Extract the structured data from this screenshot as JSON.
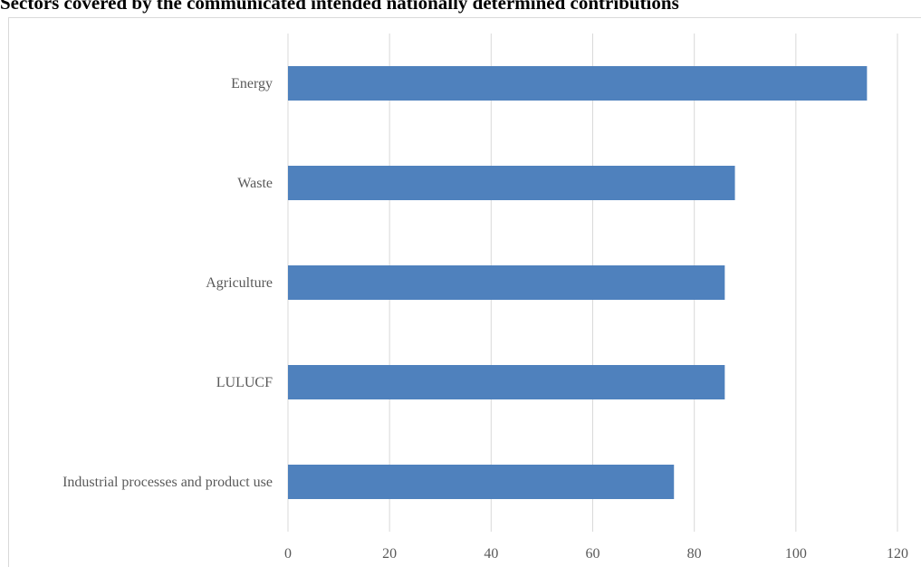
{
  "chart_data": {
    "type": "bar",
    "orientation": "horizontal",
    "title": "Sectors covered by the communicated intended nationally determined contributions",
    "categories": [
      "Energy",
      "Waste",
      "Agriculture",
      "LULUCF",
      "Industrial processes and product use"
    ],
    "values": [
      114,
      88,
      86,
      86,
      76
    ],
    "xlabel": "",
    "ylabel": "",
    "xlim": [
      0,
      120
    ],
    "xticks": [
      "0",
      "20",
      "40",
      "60",
      "80",
      "100",
      "120"
    ],
    "grid": true,
    "legend": "none",
    "bar_color": "#4f81bd",
    "grid_color": "#d9d9d9",
    "label_color": "#595959"
  }
}
